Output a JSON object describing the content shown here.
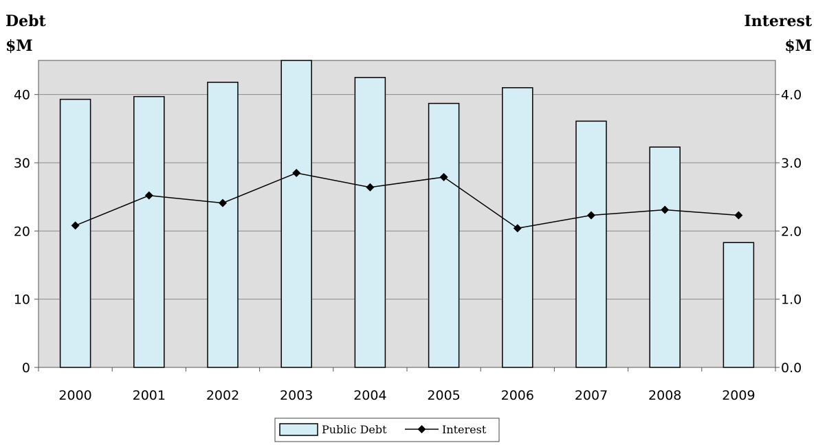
{
  "chart_data": {
    "type": "bar+line",
    "categories": [
      "2000",
      "2001",
      "2002",
      "2003",
      "2004",
      "2005",
      "2006",
      "2007",
      "2008",
      "2009"
    ],
    "series": [
      {
        "name": "Public Debt",
        "type": "bar",
        "axis": "left",
        "values": [
          39.3,
          39.7,
          41.8,
          45.1,
          42.5,
          38.7,
          41.0,
          36.1,
          32.3,
          18.3
        ],
        "color": "#d5eef5"
      },
      {
        "name": "Interest",
        "type": "line",
        "axis": "right",
        "values": [
          2.08,
          2.52,
          2.41,
          2.85,
          2.64,
          2.79,
          2.04,
          2.23,
          2.31,
          2.23
        ],
        "color": "#000000"
      }
    ],
    "y_left": {
      "label_line1": "Debt",
      "label_line2": "$M",
      "ticks": [
        "0",
        "10",
        "20",
        "30",
        "40"
      ],
      "ylim": [
        0,
        45
      ]
    },
    "y_right": {
      "label_line1": "Interest",
      "label_line2": "$M",
      "ticks": [
        "0.0",
        "1.0",
        "2.0",
        "3.0",
        "4.0"
      ],
      "ylim": [
        0,
        4.5
      ]
    },
    "plot_background": "#dedede",
    "grid": true,
    "legend_position": "bottom-center"
  }
}
